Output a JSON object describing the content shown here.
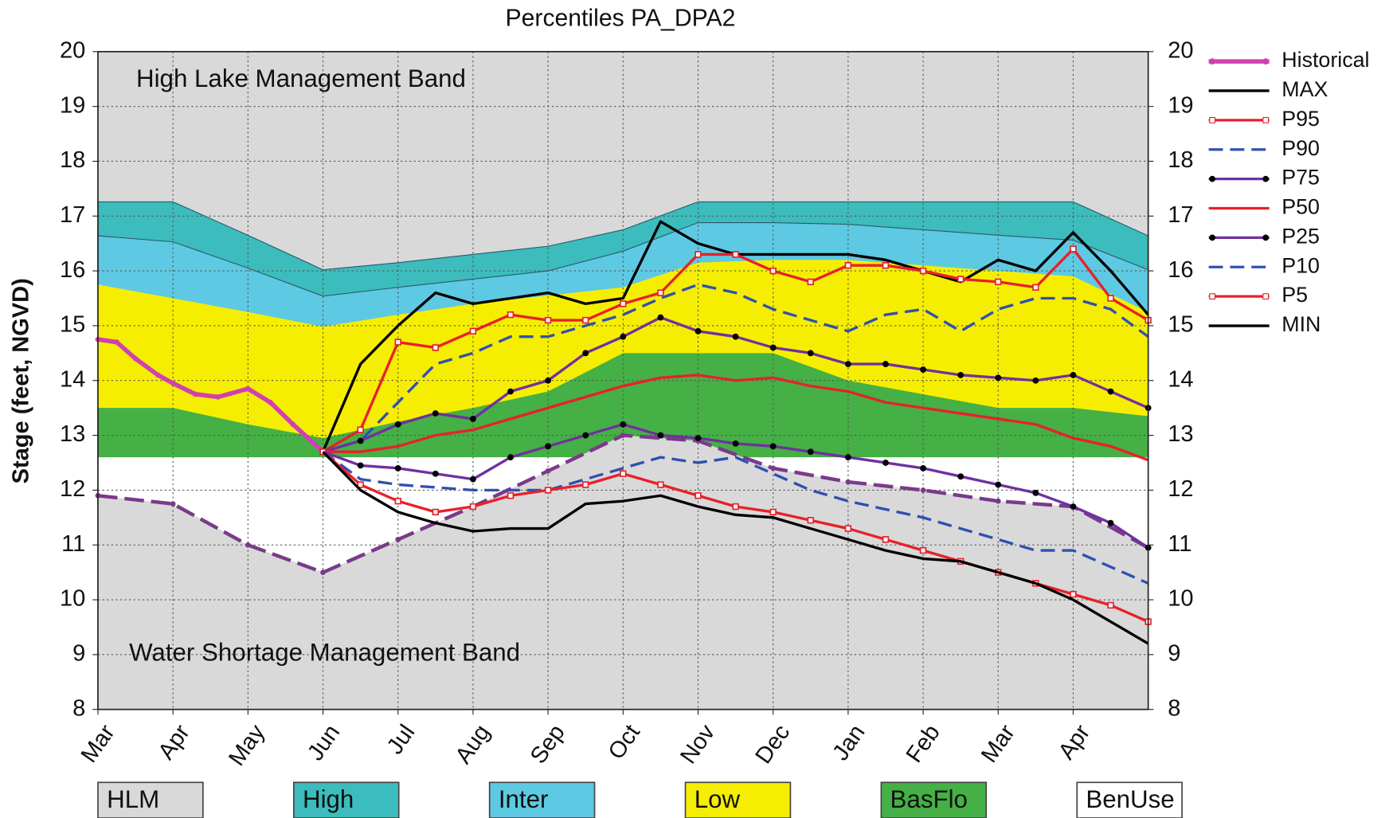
{
  "chart_data": {
    "type": "line",
    "title": "Percentiles PA_DPA2",
    "ylabel": "Stage (feet, NGVD)",
    "annotations": [
      "High Lake Management Band",
      "Water Shortage Management Band"
    ],
    "xlim": [
      0,
      14
    ],
    "xticks": [
      {
        "value": 0,
        "label": "Mar"
      },
      {
        "value": 1,
        "label": "Apr"
      },
      {
        "value": 2,
        "label": "May"
      },
      {
        "value": 3,
        "label": "Jun"
      },
      {
        "value": 4,
        "label": "Jul"
      },
      {
        "value": 5,
        "label": "Aug"
      },
      {
        "value": 6,
        "label": "Sep"
      },
      {
        "value": 7,
        "label": "Oct"
      },
      {
        "value": 8,
        "label": "Nov"
      },
      {
        "value": 9,
        "label": "Dec"
      },
      {
        "value": 10,
        "label": "Jan"
      },
      {
        "value": 11,
        "label": "Feb"
      },
      {
        "value": 12,
        "label": "Mar"
      },
      {
        "value": 13,
        "label": "Apr"
      }
    ],
    "ylim": [
      8,
      20
    ],
    "yticks": [
      8,
      9,
      10,
      11,
      12,
      13,
      14,
      15,
      16,
      17,
      18,
      19,
      20
    ],
    "y2lim": [
      8,
      20
    ],
    "y2ticks": [
      8,
      9,
      10,
      11,
      12,
      13,
      14,
      15,
      16,
      17,
      18,
      19,
      20
    ],
    "grid": true,
    "legend": "right",
    "band_x": [
      0,
      1,
      2,
      3,
      4,
      5,
      6,
      7,
      8,
      9,
      10,
      11,
      12,
      13,
      14
    ],
    "bands": [
      {
        "name": "HLM",
        "color": "#d9d9d9",
        "line_color": "#7a3a8a",
        "values": [
          11.9,
          11.75,
          11.0,
          10.5,
          11.1,
          11.7,
          12.35,
          13.0,
          12.9,
          12.4,
          12.15,
          12.0,
          11.8,
          11.7,
          10.95
        ]
      },
      {
        "name": "High",
        "color": "#3cbcbc",
        "values": [
          17.26,
          17.26,
          16.65,
          16.02,
          16.15,
          16.3,
          16.45,
          16.75,
          17.26,
          17.26,
          17.26,
          17.26,
          17.26,
          17.26,
          16.64
        ]
      },
      {
        "name": "Inter",
        "color": "#5ec9e2",
        "values": [
          16.64,
          16.53,
          16.05,
          15.54,
          15.7,
          15.85,
          16.0,
          16.36,
          16.88,
          16.88,
          16.85,
          16.75,
          16.65,
          16.56,
          16.02
        ]
      },
      {
        "name": "Low",
        "color": "#f6ee00",
        "values": [
          15.75,
          15.5,
          15.25,
          14.98,
          15.2,
          15.4,
          15.55,
          15.7,
          16.15,
          16.2,
          16.2,
          16.1,
          16.0,
          15.9,
          15.25
        ]
      },
      {
        "name": "BasFlo",
        "color": "#45b045",
        "values": [
          13.5,
          13.5,
          13.2,
          12.95,
          13.25,
          13.5,
          13.8,
          14.5,
          14.5,
          14.5,
          14.0,
          13.75,
          13.5,
          13.5,
          13.35
        ]
      },
      {
        "name": "BenUse",
        "color": "#ffffff",
        "values": [
          12.6,
          12.6,
          12.6,
          12.6,
          12.6,
          12.6,
          12.6,
          12.6,
          12.6,
          12.6,
          12.6,
          12.6,
          12.6,
          12.6,
          12.6
        ]
      }
    ],
    "series": [
      {
        "name": "Historical",
        "color": "#d040b0",
        "width": 5,
        "dash": false,
        "marker": "circle",
        "x": [
          0,
          0.25,
          0.5,
          0.8,
          1,
          1.3,
          1.6,
          2,
          2.3,
          2.6,
          3
        ],
        "values": [
          14.75,
          14.7,
          14.4,
          14.1,
          13.95,
          13.75,
          13.7,
          13.85,
          13.6,
          13.2,
          12.7
        ]
      },
      {
        "name": "MAX",
        "color": "#000000",
        "width": 3,
        "dash": false,
        "marker": "none",
        "x": [
          3,
          3.5,
          4,
          4.5,
          5,
          5.5,
          6,
          6.5,
          7,
          7.5,
          8,
          8.5,
          9,
          9.5,
          10,
          10.5,
          11,
          11.5,
          12,
          12.5,
          13,
          13.5,
          14
        ],
        "values": [
          12.7,
          14.3,
          15.0,
          15.6,
          15.4,
          15.5,
          15.6,
          15.4,
          15.5,
          16.9,
          16.5,
          16.3,
          16.3,
          16.3,
          16.3,
          16.2,
          16.0,
          15.8,
          16.2,
          16.0,
          16.7,
          16.0,
          15.2
        ]
      },
      {
        "name": "P95",
        "color": "#e8202a",
        "width": 3,
        "dash": false,
        "marker": "square",
        "x": [
          3,
          3.5,
          4,
          4.5,
          5,
          5.5,
          6,
          6.5,
          7,
          7.5,
          8,
          8.5,
          9,
          9.5,
          10,
          10.5,
          11,
          11.5,
          12,
          12.5,
          13,
          13.5,
          14
        ],
        "values": [
          12.7,
          13.1,
          14.7,
          14.6,
          14.9,
          15.2,
          15.1,
          15.1,
          15.4,
          15.6,
          16.3,
          16.3,
          16.0,
          15.8,
          16.1,
          16.1,
          16.0,
          15.85,
          15.8,
          15.7,
          16.4,
          15.5,
          15.1
        ]
      },
      {
        "name": "P90",
        "color": "#3050b0",
        "width": 3,
        "dash": true,
        "marker": "none",
        "x": [
          3,
          3.5,
          4,
          4.5,
          5,
          5.5,
          6,
          6.5,
          7,
          7.5,
          8,
          8.5,
          9,
          9.5,
          10,
          10.5,
          11,
          11.5,
          12,
          12.5,
          13,
          13.5,
          14
        ],
        "values": [
          12.7,
          12.9,
          13.6,
          14.3,
          14.5,
          14.8,
          14.8,
          15.0,
          15.2,
          15.5,
          15.75,
          15.6,
          15.3,
          15.1,
          14.9,
          15.2,
          15.3,
          14.9,
          15.3,
          15.5,
          15.5,
          15.3,
          14.8
        ]
      },
      {
        "name": "P75",
        "color": "#7030a0",
        "width": 3,
        "dash": false,
        "marker": "dot",
        "x": [
          3,
          3.5,
          4,
          4.5,
          5,
          5.5,
          6,
          6.5,
          7,
          7.5,
          8,
          8.5,
          9,
          9.5,
          10,
          10.5,
          11,
          11.5,
          12,
          12.5,
          13,
          13.5,
          14
        ],
        "values": [
          12.7,
          12.9,
          13.2,
          13.4,
          13.3,
          13.8,
          14.0,
          14.5,
          14.8,
          15.15,
          14.9,
          14.8,
          14.6,
          14.5,
          14.3,
          14.3,
          14.2,
          14.1,
          14.05,
          14.0,
          14.1,
          13.8,
          13.5
        ]
      },
      {
        "name": "P50",
        "color": "#e8202a",
        "width": 3,
        "dash": false,
        "marker": "none",
        "x": [
          3,
          3.5,
          4,
          4.5,
          5,
          5.5,
          6,
          6.5,
          7,
          7.5,
          8,
          8.5,
          9,
          9.5,
          10,
          10.5,
          11,
          11.5,
          12,
          12.5,
          13,
          13.5,
          14
        ],
        "values": [
          12.7,
          12.7,
          12.8,
          13.0,
          13.1,
          13.3,
          13.5,
          13.7,
          13.9,
          14.05,
          14.1,
          14.0,
          14.05,
          13.9,
          13.8,
          13.6,
          13.5,
          13.4,
          13.3,
          13.2,
          12.95,
          12.8,
          12.55
        ]
      },
      {
        "name": "P25",
        "color": "#7030a0",
        "width": 3,
        "dash": false,
        "marker": "dot",
        "x": [
          3,
          3.5,
          4,
          4.5,
          5,
          5.5,
          6,
          6.5,
          7,
          7.5,
          8,
          8.5,
          9,
          9.5,
          10,
          10.5,
          11,
          11.5,
          12,
          12.5,
          13,
          13.5,
          14
        ],
        "values": [
          12.7,
          12.45,
          12.4,
          12.3,
          12.2,
          12.6,
          12.8,
          13.0,
          13.2,
          13.0,
          12.95,
          12.85,
          12.8,
          12.7,
          12.6,
          12.5,
          12.4,
          12.25,
          12.1,
          11.95,
          11.7,
          11.4,
          10.95
        ]
      },
      {
        "name": "P10",
        "color": "#3050b0",
        "width": 3,
        "dash": true,
        "marker": "none",
        "x": [
          3,
          3.5,
          4,
          4.5,
          5,
          5.5,
          6,
          6.5,
          7,
          7.5,
          8,
          8.5,
          9,
          9.5,
          10,
          10.5,
          11,
          11.5,
          12,
          12.5,
          13,
          13.5,
          14
        ],
        "values": [
          12.7,
          12.2,
          12.1,
          12.05,
          12.0,
          12.0,
          12.0,
          12.2,
          12.4,
          12.6,
          12.5,
          12.6,
          12.3,
          12.0,
          11.8,
          11.65,
          11.5,
          11.3,
          11.1,
          10.9,
          10.9,
          10.6,
          10.3
        ]
      },
      {
        "name": "P5",
        "color": "#e8202a",
        "width": 3,
        "dash": false,
        "marker": "square",
        "x": [
          3,
          3.5,
          4,
          4.5,
          5,
          5.5,
          6,
          6.5,
          7,
          7.5,
          8,
          8.5,
          9,
          9.5,
          10,
          10.5,
          11,
          11.5,
          12,
          12.5,
          13,
          13.5,
          14
        ],
        "values": [
          12.7,
          12.1,
          11.8,
          11.6,
          11.7,
          11.9,
          12.0,
          12.1,
          12.3,
          12.1,
          11.9,
          11.7,
          11.6,
          11.45,
          11.3,
          11.1,
          10.9,
          10.7,
          10.5,
          10.3,
          10.1,
          9.9,
          9.6
        ]
      },
      {
        "name": "MIN",
        "color": "#000000",
        "width": 3,
        "dash": false,
        "marker": "none",
        "x": [
          3,
          3.5,
          4,
          4.5,
          5,
          5.5,
          6,
          6.5,
          7,
          7.5,
          8,
          8.5,
          9,
          9.5,
          10,
          10.5,
          11,
          11.5,
          12,
          12.5,
          13,
          13.5,
          14
        ],
        "values": [
          12.7,
          12.0,
          11.6,
          11.4,
          11.25,
          11.3,
          11.3,
          11.75,
          11.8,
          11.9,
          11.7,
          11.55,
          11.5,
          11.3,
          11.1,
          10.9,
          10.75,
          10.7,
          10.5,
          10.3,
          10.0,
          9.6,
          9.2
        ]
      }
    ]
  }
}
